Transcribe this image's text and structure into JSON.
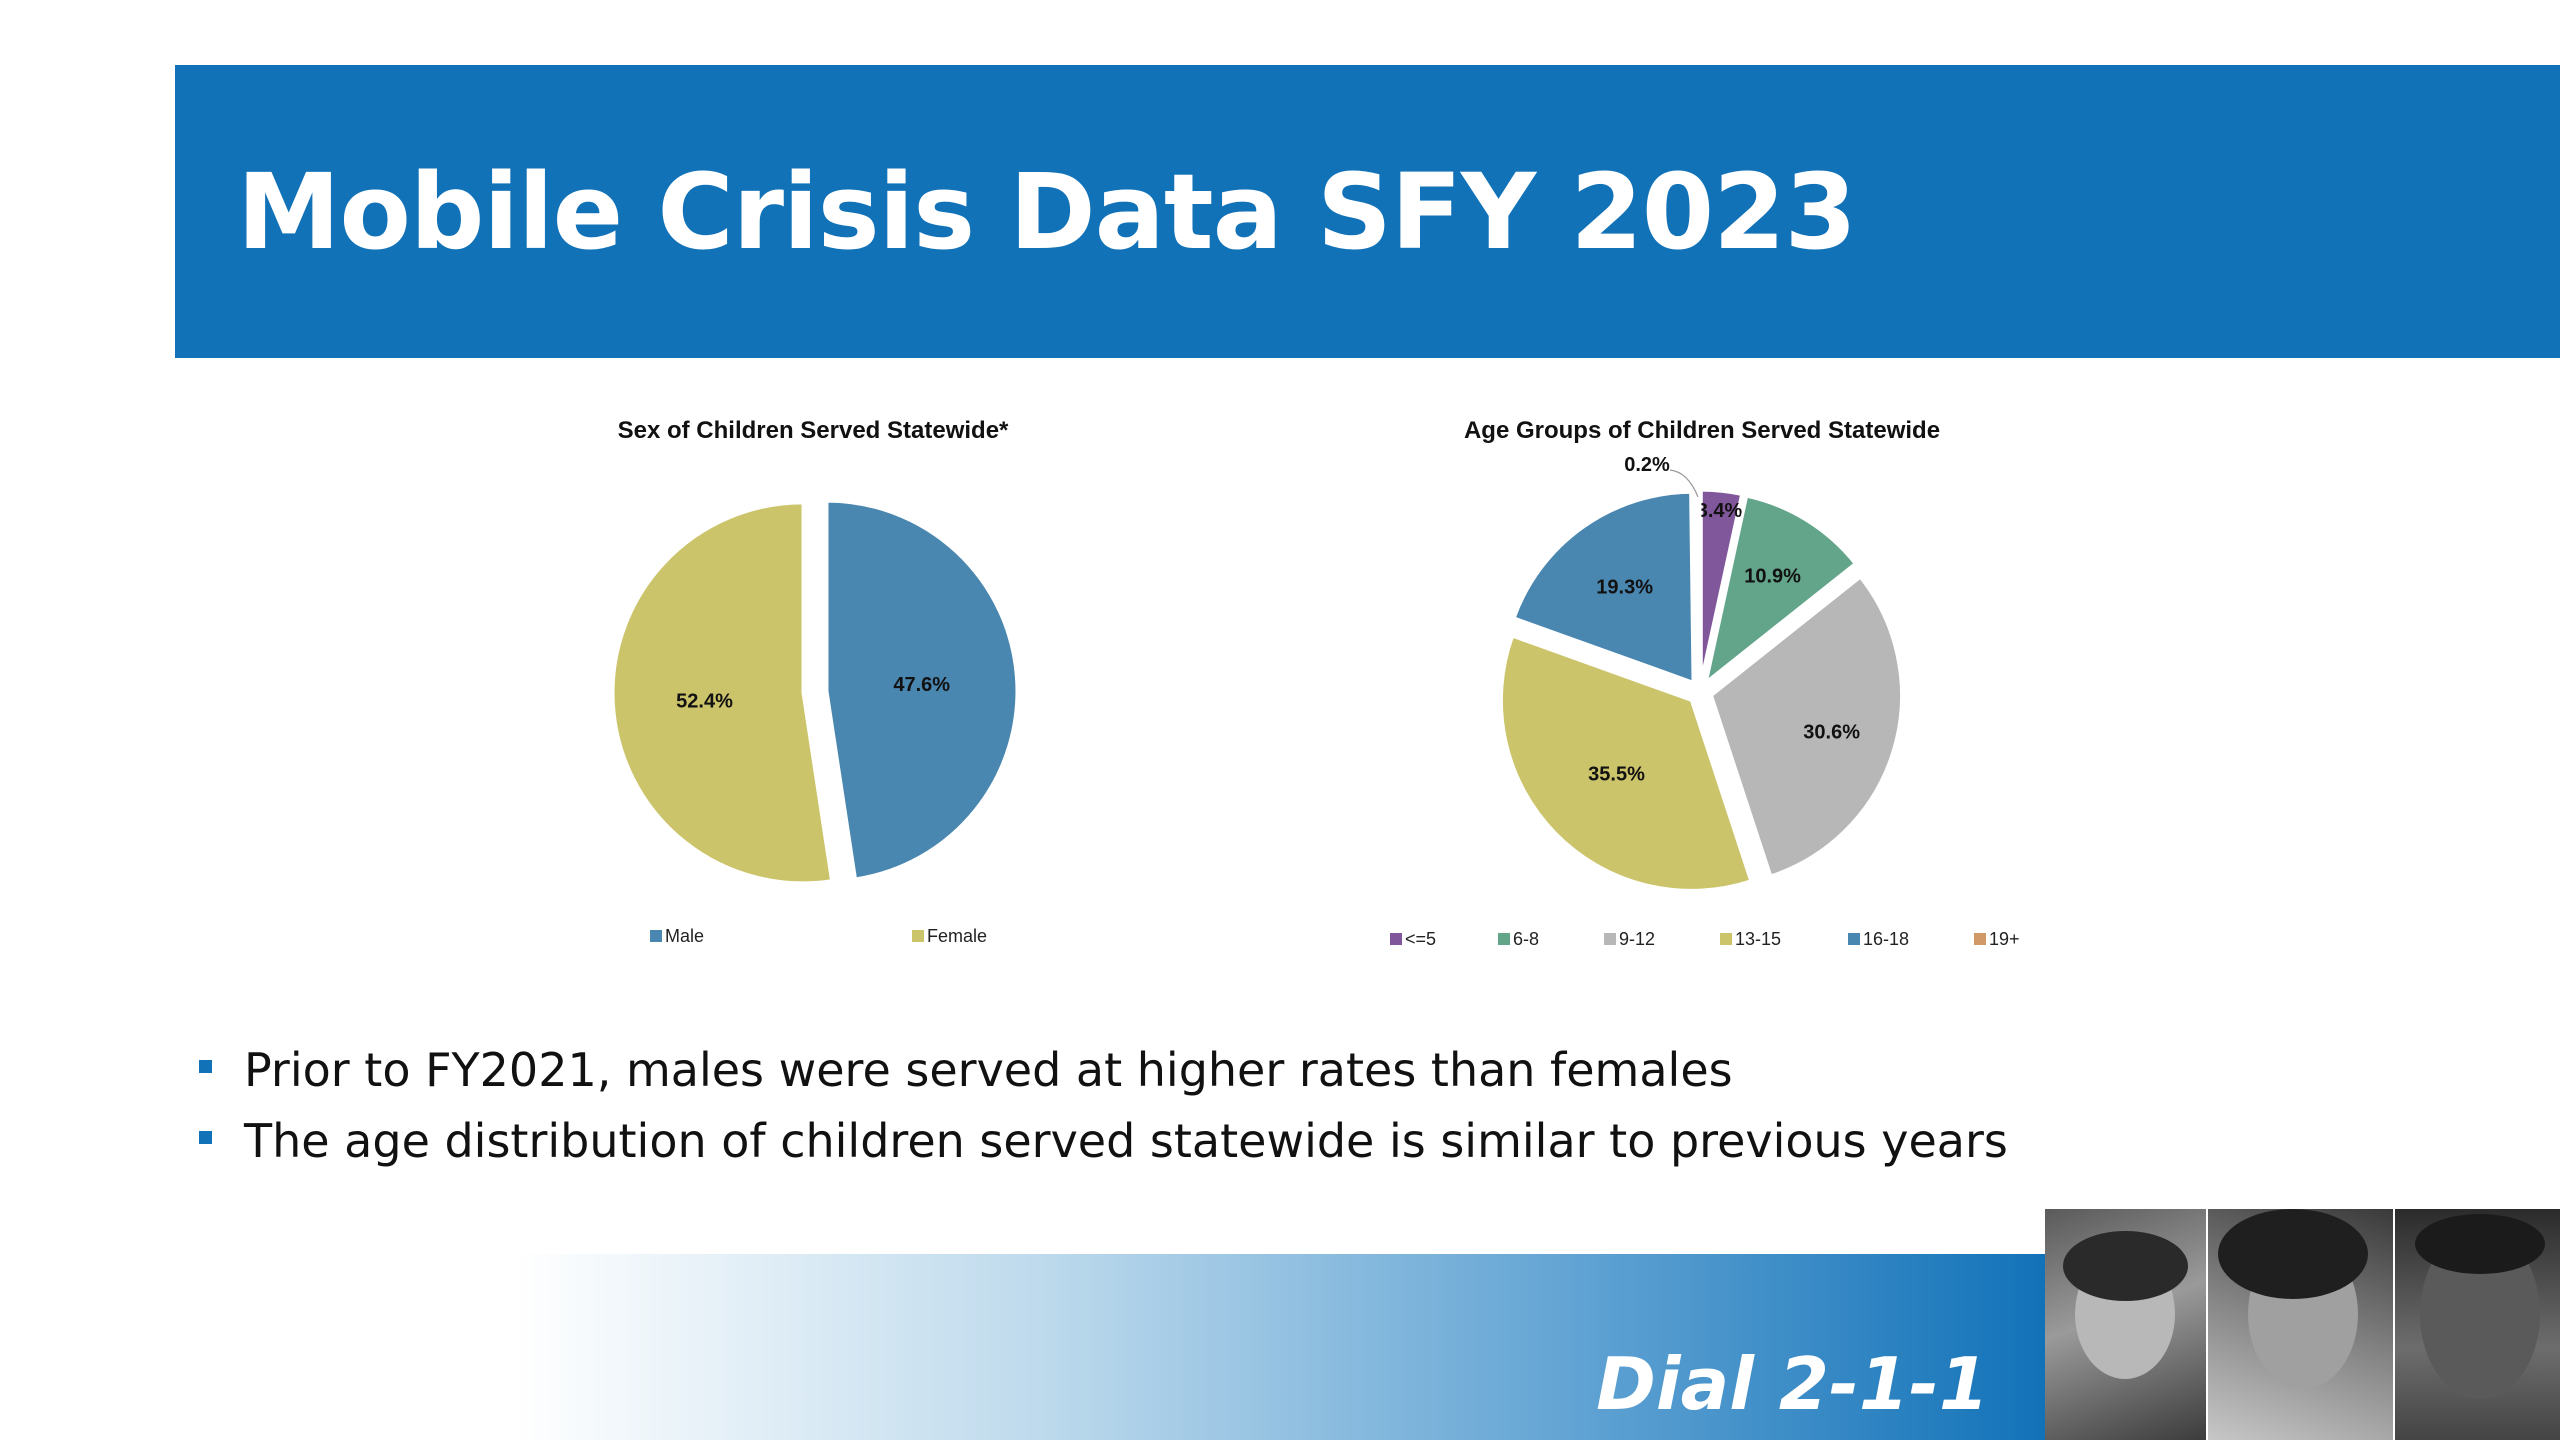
{
  "slide": {
    "title": "Mobile Crisis Data SFY 2023",
    "bullets": [
      "Prior to FY2021, males were served at higher rates than females",
      "The age distribution of children served statewide is similar to previous years"
    ],
    "footer_text": "Dial 2-1-1",
    "photo_strip": [
      "photo-1",
      "photo-2",
      "photo-3"
    ]
  },
  "colors": {
    "banner": "#1272b8",
    "male": "#4a87b0",
    "female": "#ccc46a",
    "age_le5": "#80579a",
    "age_6_8": "#63a58a",
    "age_9_12": "#b7b7b7",
    "age_13_15": "#ccc46a",
    "age_16_18": "#4a87b0",
    "age_19plus": "#d19868"
  },
  "chart_data": [
    {
      "type": "pie",
      "title": "Sex of Children Served Statewide*",
      "categories": [
        "Male",
        "Female"
      ],
      "values": [
        47.6,
        52.4
      ],
      "labels": [
        "47.6%",
        "52.4%"
      ],
      "legend": "bottom",
      "exploded": true
    },
    {
      "type": "pie",
      "title": "Age Groups of Children Served Statewide",
      "categories": [
        "<=5",
        "6-8",
        "9-12",
        "13-15",
        "16-18",
        "19+"
      ],
      "values": [
        3.4,
        10.9,
        30.6,
        35.5,
        19.3,
        0.2
      ],
      "labels": [
        "3.4%",
        "10.9%",
        "30.6%",
        "35.5%",
        "19.3%",
        "0.2%"
      ],
      "legend": "bottom",
      "exploded": true
    }
  ]
}
